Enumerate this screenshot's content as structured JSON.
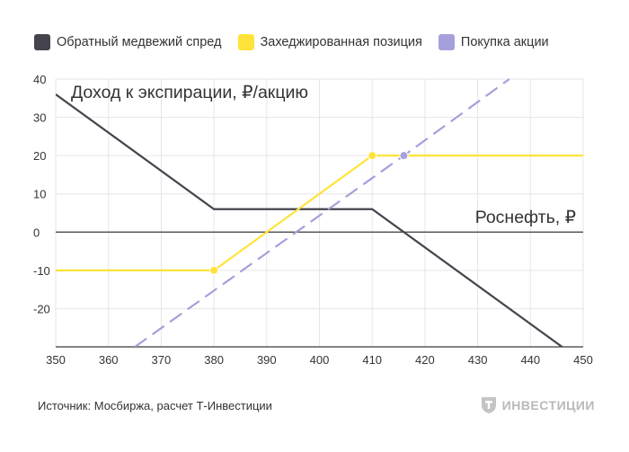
{
  "legend": [
    {
      "label": "Обратный медвежий спред",
      "color": "#45434d"
    },
    {
      "label": "Захеджированная позиция",
      "color": "#ffe33a"
    },
    {
      "label": "Покупка акции",
      "color": "#a5a0db"
    }
  ],
  "chart_data": {
    "type": "line",
    "ylabel": "Доход к экспирации, ₽/акцию",
    "xlabel": "Роснефть, ₽",
    "xlim": [
      350,
      450
    ],
    "ylim": [
      -30,
      40
    ],
    "x_ticks": [
      "350",
      "360",
      "370",
      "380",
      "390",
      "400",
      "410",
      "420",
      "430",
      "440",
      "450"
    ],
    "y_ticks": [
      "40",
      "30",
      "20",
      "10",
      "0",
      "-10",
      "-20"
    ],
    "grid": true,
    "legend_position": "top",
    "series": [
      {
        "name": "Обратный медвежий спред",
        "color": "#45434d",
        "style": "solid",
        "points": [
          [
            350,
            36
          ],
          [
            380,
            6
          ],
          [
            410,
            6
          ],
          [
            446,
            -30
          ]
        ]
      },
      {
        "name": "Захеджированная позиция",
        "color": "#ffe33a",
        "style": "solid",
        "points": [
          [
            350,
            -10
          ],
          [
            380,
            -10
          ],
          [
            410,
            20
          ],
          [
            450,
            20
          ]
        ],
        "markers": [
          [
            380,
            -10
          ],
          [
            410,
            20
          ]
        ]
      },
      {
        "name": "Покупка акции",
        "color": "#a5a0db",
        "style": "dashed",
        "points": [
          [
            365,
            -30
          ],
          [
            416,
            20
          ],
          [
            436,
            40
          ]
        ],
        "markers": [
          [
            416,
            20
          ]
        ]
      }
    ]
  },
  "source": "Источник: Мосбиржа, расчет Т-Инвестиции",
  "logo_text": "ИНВЕСТИЦИИ"
}
